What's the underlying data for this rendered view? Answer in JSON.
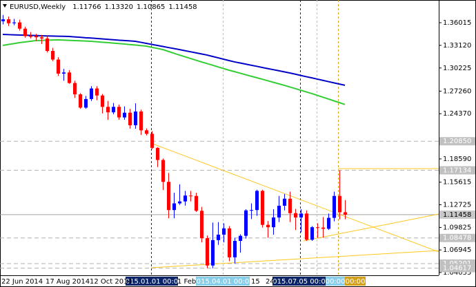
{
  "header": {
    "symbol": "EURUSD,Weekly",
    "ohlc": [
      "1.11766",
      "1.13320",
      "1.10865",
      "1.11458"
    ]
  },
  "chart_data": {
    "type": "candlestick",
    "ylim": [
      1.037,
      1.3892
    ],
    "yticks": [
      1.36015,
      {
        "value": 1.3312,
        "label": "1.33120"
      },
      1.30225,
      {
        "value": 1.2726,
        "label": "1.27260"
      },
      {
        "value": 1.2437,
        "label": "1.24370"
      },
      {
        "value": 1.1859,
        "label": "1.18590"
      },
      1.15615,
      1.12725,
      1.09825,
      1.06945,
      1.04055
    ],
    "bull_color": "#0000ff",
    "bear_color": "#ff0000",
    "open": [
      1.362,
      1.3645,
      1.3595,
      1.3605,
      1.3525,
      1.343,
      1.3428,
      1.3415,
      1.34,
      1.324,
      1.313,
      1.295,
      1.2965,
      1.283,
      1.2685,
      1.2515,
      1.2625,
      1.276,
      1.267,
      1.2525,
      1.2455,
      1.2525,
      1.239,
      1.245,
      1.229,
      1.2465,
      1.2225,
      1.218,
      1.2,
      1.1845,
      1.1565,
      1.1205,
      1.129,
      1.1315,
      1.139,
      1.1385,
      1.1195,
      1.0845,
      1.0495,
      1.082,
      1.089,
      1.097,
      1.06,
      1.081,
      1.0875,
      1.12,
      1.1205,
      1.145,
      1.1015,
      1.0985,
      1.111,
      1.126,
      1.135,
      1.1165,
      1.111,
      1.116,
      1.0825,
      1.0985,
      1.098,
      1.0965,
      1.1105,
      1.1385,
      1.11766
    ],
    "high": [
      1.37,
      1.368,
      1.365,
      1.364,
      1.355,
      1.348,
      1.346,
      1.3445,
      1.343,
      1.328,
      1.316,
      1.301,
      1.2995,
      1.286,
      1.27,
      1.2665,
      1.279,
      1.279,
      1.269,
      1.26,
      1.2575,
      1.2555,
      1.253,
      1.25,
      1.257,
      1.249,
      1.225,
      1.2215,
      1.201,
      1.1865,
      1.168,
      1.1425,
      1.1535,
      1.145,
      1.145,
      1.1425,
      1.1245,
      1.088,
      1.1045,
      1.105,
      1.1035,
      1.1,
      1.085,
      1.0895,
      1.1215,
      1.129,
      1.1465,
      1.1465,
      1.1065,
      1.1215,
      1.1385,
      1.141,
      1.144,
      1.122,
      1.1215,
      1.12,
      1.1,
      1.1035,
      1.1115,
      1.116,
      1.144,
      1.1714,
      1.1332
    ],
    "low": [
      1.358,
      1.356,
      1.357,
      1.35,
      1.341,
      1.34,
      1.337,
      1.333,
      1.322,
      1.311,
      1.292,
      1.286,
      1.282,
      1.264,
      1.25,
      1.25,
      1.26,
      1.261,
      1.244,
      1.236,
      1.243,
      1.236,
      1.236,
      1.2245,
      1.2245,
      1.2165,
      1.216,
      1.1985,
      1.1755,
      1.146,
      1.11,
      1.11,
      1.127,
      1.126,
      1.1315,
      1.118,
      1.079,
      1.0462,
      1.046,
      1.076,
      1.079,
      1.055,
      1.052,
      1.066,
      1.084,
      1.109,
      1.113,
      1.098,
      1.085,
      1.089,
      1.105,
      1.12,
      1.105,
      1.095,
      1.092,
      1.081,
      1.081,
      1.085,
      1.085,
      1.095,
      1.106,
      1.1087,
      1.10865
    ],
    "close": [
      1.3645,
      1.3595,
      1.3605,
      1.3525,
      1.343,
      1.3428,
      1.3415,
      1.34,
      1.324,
      1.313,
      1.295,
      1.2965,
      1.283,
      1.2685,
      1.2515,
      1.2625,
      1.276,
      1.267,
      1.2525,
      1.2455,
      1.2525,
      1.239,
      1.245,
      1.229,
      1.2465,
      1.2225,
      1.218,
      1.2,
      1.1845,
      1.1565,
      1.1205,
      1.129,
      1.1315,
      1.139,
      1.1385,
      1.1195,
      1.0845,
      1.0495,
      1.082,
      1.089,
      1.097,
      1.06,
      1.081,
      1.0875,
      1.12,
      1.1205,
      1.145,
      1.1015,
      1.0985,
      1.111,
      1.126,
      1.135,
      1.1165,
      1.111,
      1.116,
      1.0825,
      1.0985,
      1.098,
      1.0965,
      1.1105,
      1.1385,
      1.1177,
      1.11458
    ],
    "moving_averages": [
      {
        "color": "#0000c8",
        "values": [
          1.3452,
          1.3449,
          1.3446,
          1.3444,
          1.3442,
          1.3439,
          1.3437,
          1.3434,
          1.3432,
          1.3431,
          1.3429,
          1.3427,
          1.3425,
          1.342,
          1.3415,
          1.3409,
          1.3405,
          1.34,
          1.3394,
          1.3389,
          1.3384,
          1.3378,
          1.3374,
          1.3369,
          1.3364,
          1.3351,
          1.3337,
          1.3324,
          1.3311,
          1.3298,
          1.3284,
          1.3271,
          1.3258,
          1.3244,
          1.323,
          1.3216,
          1.3202,
          1.3188,
          1.317,
          1.3153,
          1.3135,
          1.3117,
          1.31,
          1.3086,
          1.3072,
          1.3058,
          1.3044,
          1.3029,
          1.3015,
          1.3001,
          1.2987,
          1.2973,
          1.2959,
          1.2943,
          1.2927,
          1.2911,
          1.2896,
          1.288,
          1.2864,
          1.2848,
          1.2832,
          1.2817,
          1.2801
        ]
      },
      {
        "color": "#32cd32",
        "values": [
          1.3311,
          1.3323,
          1.3334,
          1.3346,
          1.3355,
          1.3364,
          1.3373,
          1.3375,
          1.3378,
          1.338,
          1.3382,
          1.3379,
          1.3376,
          1.3373,
          1.337,
          1.3367,
          1.3364,
          1.3358,
          1.3352,
          1.3347,
          1.3341,
          1.3335,
          1.3329,
          1.3322,
          1.3316,
          1.3309,
          1.3302,
          1.3287,
          1.3273,
          1.3258,
          1.3235,
          1.3211,
          1.3188,
          1.3166,
          1.3144,
          1.3122,
          1.31,
          1.3079,
          1.3058,
          1.3036,
          1.3015,
          1.2994,
          1.2975,
          1.2956,
          1.2936,
          1.2917,
          1.2898,
          1.2879,
          1.2859,
          1.284,
          1.282,
          1.2801,
          1.278,
          1.2759,
          1.2737,
          1.2716,
          1.2695,
          1.2672,
          1.2649,
          1.2626,
          1.2602,
          1.2579,
          1.2555
        ]
      }
    ],
    "levels": [
      {
        "value": 1.2085,
        "label": "1.20850"
      },
      {
        "value": 1.17134,
        "label": "1.17134"
      },
      {
        "value": 1.08478,
        "label": "1.08478"
      },
      {
        "value": 1.05201,
        "label": "1.05201"
      },
      {
        "value": 1.04617,
        "label": "1.04617"
      }
    ],
    "last_price": {
      "value": 1.11458,
      "label": "1.11458"
    },
    "x_labels": [
      "22 Jun 2014",
      "17 Aug 2014",
      "12 Oct 2014",
      "1 Feb",
      "15",
      "24"
    ],
    "markers": [
      {
        "label": "2015.01.01 00:00",
        "color": "#0a246a"
      },
      {
        "label": "2015.04.01 00:00",
        "color": "#87ceeb"
      },
      {
        "label": "2015.07.05 00:00",
        "color": "#0a246a"
      },
      {
        "label": "00:00",
        "color": "#87ceeb"
      },
      {
        "label": "00:00",
        "color": "#d4a017"
      }
    ]
  }
}
